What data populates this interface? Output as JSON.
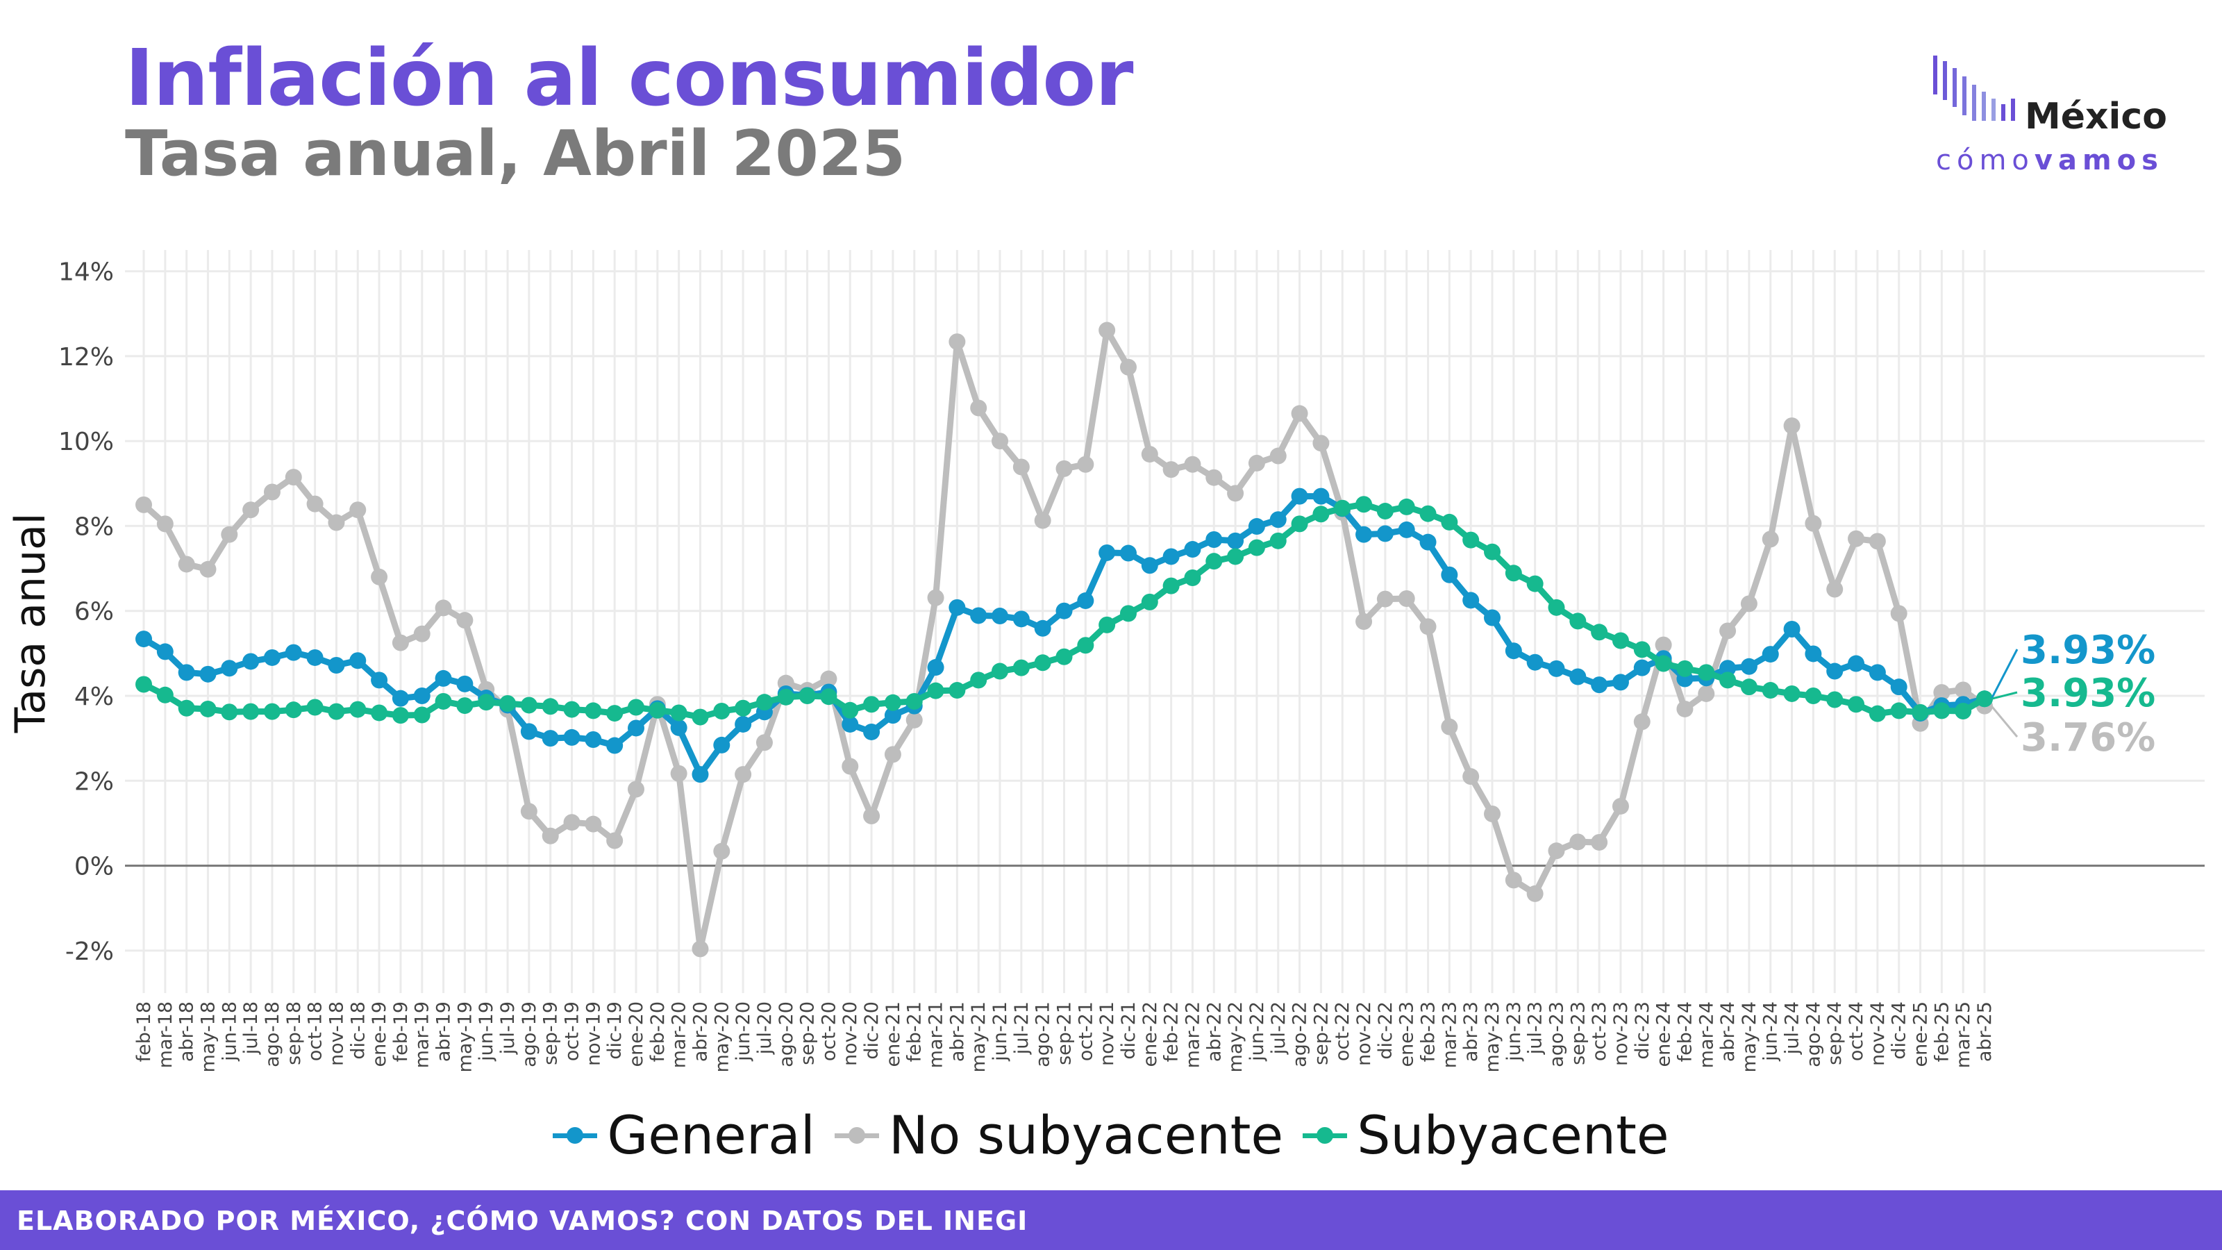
{
  "header": {
    "title": "Inflación al consumidor",
    "subtitle": "Tasa anual, Abril 2025"
  },
  "logo": {
    "word": "México",
    "sub_light": "cómo",
    "sub_bold": "vamos"
  },
  "footer": {
    "text": "ELABORADO POR MÉXICO, ¿CÓMO VAMOS? CON DATOS DEL INEGI"
  },
  "legend": {
    "items": [
      {
        "label": "General",
        "color": "#1396cb"
      },
      {
        "label": "No subyacente",
        "color": "#bdbdbd"
      },
      {
        "label": "Subyacente",
        "color": "#16b98f"
      }
    ]
  },
  "chart_data": {
    "type": "line",
    "title": "Inflación al consumidor",
    "subtitle": "Tasa anual, Abril 2025",
    "ylabel": "Tasa anual",
    "xlabel": "",
    "ylim": [
      -3,
      14.5
    ],
    "yticks": [
      "-2%",
      "0%",
      "2%",
      "4%",
      "6%",
      "8%",
      "10%",
      "12%",
      "14%"
    ],
    "grid": true,
    "legend_position": "bottom",
    "categories": [
      "feb-18",
      "mar-18",
      "abr-18",
      "may-18",
      "jun-18",
      "jul-18",
      "ago-18",
      "sep-18",
      "oct-18",
      "nov-18",
      "dic-18",
      "ene-19",
      "feb-19",
      "mar-19",
      "abr-19",
      "may-19",
      "jun-19",
      "jul-19",
      "ago-19",
      "sep-19",
      "oct-19",
      "nov-19",
      "dic-19",
      "ene-20",
      "feb-20",
      "mar-20",
      "abr-20",
      "may-20",
      "jun-20",
      "jul-20",
      "ago-20",
      "sep-20",
      "oct-20",
      "nov-20",
      "dic-20",
      "ene-21",
      "feb-21",
      "mar-21",
      "abr-21",
      "may-21",
      "jun-21",
      "jul-21",
      "ago-21",
      "sep-21",
      "oct-21",
      "nov-21",
      "dic-21",
      "ene-22",
      "feb-22",
      "mar-22",
      "abr-22",
      "may-22",
      "jun-22",
      "jul-22",
      "ago-22",
      "sep-22",
      "oct-22",
      "nov-22",
      "dic-22",
      "ene-23",
      "feb-23",
      "mar-23",
      "abr-23",
      "may-23",
      "jun-23",
      "jul-23",
      "ago-23",
      "sep-23",
      "oct-23",
      "nov-23",
      "dic-23",
      "ene-24",
      "feb-24",
      "mar-24",
      "abr-24",
      "may-24",
      "jun-24",
      "jul-24",
      "ago-24",
      "sep-24",
      "oct-24",
      "nov-24",
      "dic-24",
      "ene-25",
      "feb-25",
      "mar-25",
      "abr-25"
    ],
    "series": [
      {
        "name": "General",
        "color": "#1396cb",
        "values": [
          5.34,
          5.04,
          4.55,
          4.51,
          4.65,
          4.81,
          4.9,
          5.02,
          4.9,
          4.72,
          4.83,
          4.37,
          3.94,
          4.0,
          4.41,
          4.28,
          3.95,
          3.78,
          3.16,
          3.0,
          3.02,
          2.97,
          2.83,
          3.24,
          3.7,
          3.25,
          2.15,
          2.84,
          3.33,
          3.62,
          4.05,
          4.01,
          4.09,
          3.33,
          3.15,
          3.54,
          3.76,
          4.67,
          6.08,
          5.89,
          5.88,
          5.81,
          5.59,
          6.0,
          6.24,
          7.37,
          7.36,
          7.07,
          7.28,
          7.45,
          7.68,
          7.65,
          7.99,
          8.15,
          8.7,
          8.7,
          8.41,
          7.8,
          7.82,
          7.91,
          7.62,
          6.85,
          6.25,
          5.84,
          5.06,
          4.79,
          4.64,
          4.45,
          4.26,
          4.32,
          4.66,
          4.88,
          4.4,
          4.42,
          4.65,
          4.69,
          4.98,
          5.57,
          4.99,
          4.58,
          4.76,
          4.55,
          4.21,
          3.59,
          3.77,
          3.8,
          3.93
        ],
        "end_label": "3.93%"
      },
      {
        "name": "No subyacente",
        "color": "#bdbdbd",
        "values": [
          8.5,
          8.05,
          7.1,
          6.98,
          7.8,
          8.38,
          8.8,
          9.15,
          8.52,
          8.08,
          8.38,
          6.8,
          5.25,
          5.46,
          6.07,
          5.78,
          4.15,
          3.68,
          1.28,
          0.7,
          1.02,
          0.98,
          0.59,
          1.8,
          3.8,
          2.17,
          -1.96,
          0.34,
          2.15,
          2.9,
          4.3,
          4.13,
          4.4,
          2.34,
          1.17,
          2.62,
          3.43,
          6.31,
          12.34,
          10.78,
          10.0,
          9.39,
          8.13,
          9.35,
          9.45,
          12.61,
          11.74,
          9.69,
          9.33,
          9.45,
          9.14,
          8.77,
          9.48,
          9.65,
          10.65,
          9.95,
          8.32,
          5.75,
          6.28,
          6.29,
          5.63,
          3.27,
          2.1,
          1.22,
          -0.34,
          -0.66,
          0.35,
          0.56,
          0.55,
          1.4,
          3.39,
          5.2,
          3.69,
          4.05,
          5.53,
          6.17,
          7.69,
          10.36,
          8.06,
          6.51,
          7.7,
          7.64,
          5.94,
          3.35,
          4.08,
          4.14,
          3.76
        ],
        "end_label": "3.76%"
      },
      {
        "name": "Subyacente",
        "color": "#16b98f",
        "values": [
          4.27,
          4.02,
          3.71,
          3.69,
          3.62,
          3.63,
          3.63,
          3.67,
          3.73,
          3.63,
          3.68,
          3.6,
          3.54,
          3.55,
          3.87,
          3.77,
          3.85,
          3.82,
          3.78,
          3.75,
          3.68,
          3.65,
          3.59,
          3.73,
          3.66,
          3.6,
          3.5,
          3.64,
          3.71,
          3.85,
          3.97,
          4.0,
          3.98,
          3.66,
          3.8,
          3.84,
          3.87,
          4.12,
          4.13,
          4.37,
          4.58,
          4.66,
          4.78,
          4.92,
          5.19,
          5.67,
          5.94,
          6.21,
          6.59,
          6.78,
          7.17,
          7.28,
          7.49,
          7.65,
          8.05,
          8.28,
          8.42,
          8.51,
          8.35,
          8.45,
          8.29,
          8.09,
          7.67,
          7.39,
          6.89,
          6.64,
          6.08,
          5.76,
          5.5,
          5.3,
          5.09,
          4.76,
          4.64,
          4.55,
          4.37,
          4.21,
          4.13,
          4.05,
          4.0,
          3.91,
          3.8,
          3.58,
          3.65,
          3.61,
          3.65,
          3.64,
          3.93
        ],
        "end_label": "3.93%"
      }
    ]
  }
}
